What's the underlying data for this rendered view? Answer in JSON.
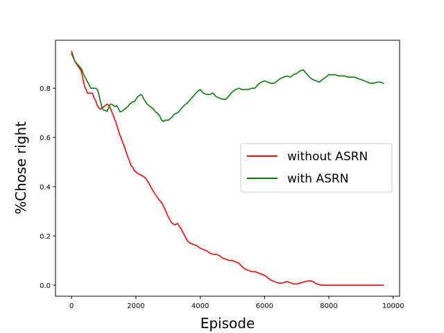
{
  "chart_data": {
    "type": "line",
    "title": "",
    "xlabel": "Episode",
    "ylabel": "%Chose right",
    "xlim": [
      -500,
      10200
    ],
    "ylim": [
      -0.045,
      0.995
    ],
    "xticks": [
      0,
      2000,
      4000,
      6000,
      8000,
      10000
    ],
    "xtick_labels": [
      "0",
      "2000",
      "4000",
      "6000",
      "8000",
      "10000"
    ],
    "yticks": [
      0.0,
      0.2,
      0.4,
      0.6,
      0.8
    ],
    "ytick_labels": [
      "0.0",
      "0.2",
      "0.4",
      "0.6",
      "0.8"
    ],
    "grid": false,
    "legend_position": "center-right",
    "series": [
      {
        "name": "without ASRN",
        "color": "#ff0000",
        "x": [
          0,
          100,
          200,
          300,
          350,
          400,
          450,
          500,
          550,
          600,
          650,
          700,
          750,
          800,
          850,
          900,
          950,
          1000,
          1050,
          1100,
          1150,
          1200,
          1250,
          1300,
          1350,
          1400,
          1450,
          1500,
          1550,
          1600,
          1650,
          1700,
          1750,
          1800,
          1850,
          1900,
          1950,
          2000,
          2050,
          2100,
          2200,
          2300,
          2400,
          2500,
          2600,
          2700,
          2800,
          2900,
          3000,
          3100,
          3200,
          3300,
          3400,
          3500,
          3600,
          3700,
          3800,
          3900,
          4000,
          4100,
          4200,
          4300,
          4400,
          4500,
          4600,
          4700,
          4800,
          4900,
          5000,
          5100,
          5200,
          5300,
          5400,
          5500,
          5600,
          5700,
          5800,
          5900,
          6000,
          6100,
          6200,
          6300,
          6400,
          6500,
          6600,
          6700,
          6800,
          6900,
          7000,
          7100,
          7200,
          7300,
          7400,
          7500,
          7600,
          7700,
          7800,
          7900,
          8000,
          8500,
          9000,
          9500,
          9700
        ],
        "y": [
          0.95,
          0.91,
          0.89,
          0.87,
          0.84,
          0.81,
          0.795,
          0.78,
          0.78,
          0.78,
          0.78,
          0.76,
          0.75,
          0.73,
          0.72,
          0.715,
          0.72,
          0.725,
          0.73,
          0.735,
          0.73,
          0.72,
          0.705,
          0.69,
          0.67,
          0.655,
          0.63,
          0.61,
          0.595,
          0.575,
          0.56,
          0.54,
          0.52,
          0.505,
          0.485,
          0.48,
          0.465,
          0.46,
          0.455,
          0.45,
          0.445,
          0.435,
          0.415,
          0.39,
          0.37,
          0.35,
          0.335,
          0.31,
          0.28,
          0.255,
          0.245,
          0.25,
          0.23,
          0.205,
          0.18,
          0.17,
          0.165,
          0.16,
          0.15,
          0.145,
          0.14,
          0.13,
          0.125,
          0.125,
          0.12,
          0.11,
          0.105,
          0.1,
          0.1,
          0.095,
          0.09,
          0.075,
          0.065,
          0.06,
          0.055,
          0.055,
          0.05,
          0.045,
          0.04,
          0.03,
          0.02,
          0.015,
          0.01,
          0.008,
          0.01,
          0.015,
          0.01,
          0.005,
          0.005,
          0.008,
          0.012,
          0.016,
          0.018,
          0.015,
          0.006,
          0.002,
          0.0,
          0.0,
          0.0,
          0.0,
          0.0,
          0.0,
          0.0
        ]
      },
      {
        "name": "with ASRN",
        "color": "#008000",
        "x": [
          0,
          100,
          200,
          300,
          400,
          500,
          600,
          700,
          750,
          800,
          850,
          900,
          950,
          1000,
          1050,
          1100,
          1150,
          1200,
          1250,
          1300,
          1350,
          1400,
          1450,
          1500,
          1550,
          1600,
          1650,
          1700,
          1750,
          1800,
          1850,
          1900,
          1950,
          2000,
          2050,
          2100,
          2150,
          2200,
          2250,
          2300,
          2350,
          2400,
          2450,
          2500,
          2550,
          2600,
          2650,
          2700,
          2750,
          2800,
          2850,
          2900,
          3000,
          3100,
          3200,
          3300,
          3400,
          3500,
          3600,
          3700,
          3800,
          3900,
          4000,
          4100,
          4200,
          4300,
          4400,
          4500,
          4600,
          4700,
          4800,
          4900,
          5000,
          5100,
          5200,
          5300,
          5400,
          5500,
          5600,
          5700,
          5800,
          5900,
          6000,
          6100,
          6200,
          6300,
          6400,
          6500,
          6600,
          6700,
          6800,
          6900,
          7000,
          7100,
          7200,
          7300,
          7400,
          7500,
          7600,
          7700,
          7800,
          7900,
          8000,
          8100,
          8200,
          8300,
          8400,
          8500,
          8600,
          8700,
          8800,
          8900,
          9000,
          9100,
          9200,
          9300,
          9400,
          9500,
          9600,
          9700
        ],
        "y": [
          0.94,
          0.91,
          0.895,
          0.88,
          0.85,
          0.825,
          0.8,
          0.8,
          0.8,
          0.795,
          0.775,
          0.745,
          0.72,
          0.71,
          0.71,
          0.705,
          0.72,
          0.735,
          0.735,
          0.73,
          0.725,
          0.73,
          0.72,
          0.705,
          0.705,
          0.71,
          0.715,
          0.72,
          0.725,
          0.735,
          0.74,
          0.745,
          0.745,
          0.755,
          0.765,
          0.77,
          0.775,
          0.77,
          0.755,
          0.745,
          0.735,
          0.73,
          0.725,
          0.72,
          0.715,
          0.705,
          0.7,
          0.695,
          0.685,
          0.67,
          0.665,
          0.67,
          0.67,
          0.68,
          0.695,
          0.7,
          0.715,
          0.73,
          0.74,
          0.755,
          0.77,
          0.785,
          0.795,
          0.78,
          0.775,
          0.775,
          0.78,
          0.765,
          0.76,
          0.755,
          0.755,
          0.77,
          0.785,
          0.795,
          0.8,
          0.795,
          0.795,
          0.795,
          0.8,
          0.8,
          0.815,
          0.825,
          0.83,
          0.825,
          0.82,
          0.82,
          0.83,
          0.84,
          0.845,
          0.85,
          0.845,
          0.855,
          0.86,
          0.87,
          0.875,
          0.86,
          0.845,
          0.835,
          0.83,
          0.825,
          0.835,
          0.845,
          0.855,
          0.855,
          0.855,
          0.85,
          0.85,
          0.85,
          0.845,
          0.845,
          0.845,
          0.84,
          0.835,
          0.83,
          0.825,
          0.82,
          0.82,
          0.825,
          0.825,
          0.82
        ]
      }
    ]
  }
}
